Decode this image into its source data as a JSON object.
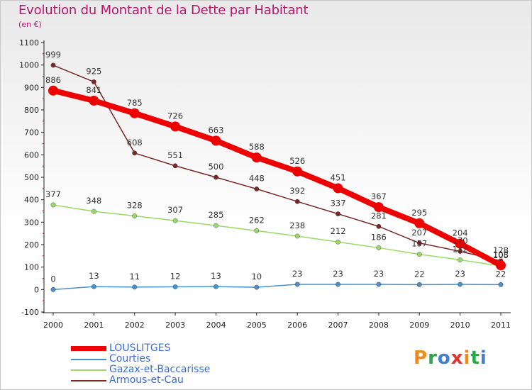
{
  "title": "Evolution du Montant de la Dette par Habitant",
  "subtitle": "(en €)",
  "logo": {
    "letters": [
      "P",
      "r",
      "o",
      "x",
      "i",
      "t",
      "i"
    ],
    "colors": [
      "#f08a1c",
      "#2aa84a",
      "#3f7fd6",
      "#e0342c",
      "#f08a1c",
      "#2aa84a",
      "#3f7fd6"
    ]
  },
  "chart_data": {
    "type": "line",
    "x": [
      "2000",
      "2001",
      "2002",
      "2003",
      "2004",
      "2005",
      "2006",
      "2007",
      "2008",
      "2009",
      "2010",
      "2011"
    ],
    "ylim": [
      -100,
      1100
    ],
    "yticks": [
      "-100",
      "0",
      "100",
      "200",
      "300",
      "400",
      "500",
      "600",
      "700",
      "800",
      "900",
      "1000",
      "1100"
    ],
    "series": [
      {
        "name": "LOUSLITGES",
        "color": "#ee0000",
        "width": 8,
        "marker": 7,
        "values": [
          886,
          841,
          785,
          726,
          663,
          588,
          526,
          451,
          367,
          295,
          204,
          108
        ],
        "labels": [
          "886",
          "841",
          "785",
          "726",
          "663",
          "588",
          "526",
          "451",
          "367",
          "295",
          "204",
          "108"
        ]
      },
      {
        "name": "Courties",
        "color": "#4a8fc8",
        "width": 1.5,
        "marker": 3.2,
        "values": [
          0,
          13,
          11,
          12,
          13,
          10,
          23,
          23,
          23,
          22,
          23,
          22
        ],
        "labels": [
          "0",
          "13",
          "11",
          "12",
          "13",
          "10",
          "23",
          "23",
          "23",
          "22",
          "23",
          "22"
        ]
      },
      {
        "name": "Gazax-et-Baccarisse",
        "color": "#99d96a",
        "width": 1.5,
        "marker": 3.2,
        "values": [
          377,
          348,
          328,
          307,
          285,
          262,
          238,
          212,
          186,
          157,
          132,
          105
        ],
        "labels": [
          "377",
          "348",
          "328",
          "307",
          "285",
          "262",
          "238",
          "212",
          "186",
          "157",
          "132",
          "105"
        ]
      },
      {
        "name": "Armous-et-Cau",
        "color": "#7a2828",
        "width": 1.5,
        "marker": 3.2,
        "values": [
          999,
          925,
          608,
          551,
          500,
          448,
          392,
          337,
          281,
          207,
          170,
          128
        ],
        "labels": [
          "999",
          "925",
          "608",
          "551",
          "500",
          "448",
          "392",
          "337",
          "281",
          "207",
          "170",
          "128"
        ]
      }
    ]
  }
}
